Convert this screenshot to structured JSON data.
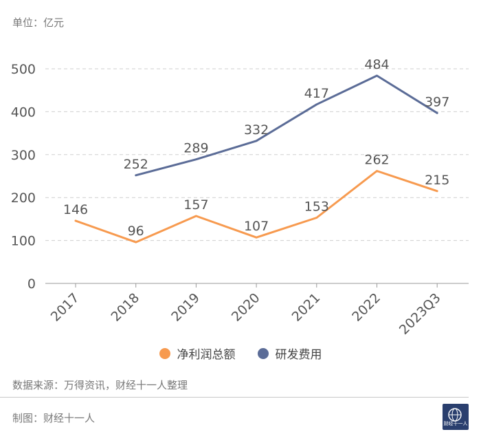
{
  "unit_label": "单位：亿元",
  "source": "数据来源：万得资讯，财经十一人整理",
  "maker": "制图：财经十一人",
  "logo_text": "财经十一人",
  "chart_data": {
    "type": "line",
    "categories": [
      "2017",
      "2018",
      "2019",
      "2020",
      "2021",
      "2022",
      "2023Q3"
    ],
    "ylim": [
      0,
      500
    ],
    "yticks": [
      0,
      100,
      200,
      300,
      400,
      500
    ],
    "grid": true,
    "legend_position": "bottom",
    "series": [
      {
        "name": "净利润总额",
        "color": "#f79a4f",
        "values": [
          146,
          96,
          157,
          107,
          153,
          262,
          215
        ]
      },
      {
        "name": "研发费用",
        "color": "#5b6c97",
        "values": [
          null,
          252,
          289,
          332,
          417,
          484,
          397
        ]
      }
    ]
  }
}
